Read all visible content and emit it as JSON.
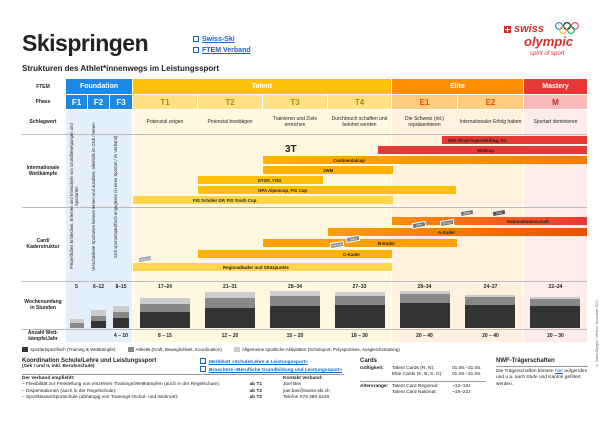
{
  "header": {
    "title": "Skispringen",
    "links": [
      "Swiss-Ski",
      "FTEM Verband"
    ],
    "subtitle": "Strukturen des Athlet*innenwegs im Leistungssport",
    "logo_line1": "swiss",
    "logo_line2": "olympic",
    "logo_tagline": "spirit of sport"
  },
  "row_labels": {
    "ftem": "FTEM",
    "phase": "Phase",
    "slogan": "Schlagwort",
    "international": "Internationale Wettkämpfe",
    "card": "Card/ Kaderstruktur",
    "weekly": "Wochenumfang in Stunden",
    "count": "Anzahl Wett-kämpfe/Jahr"
  },
  "groups": [
    {
      "name": "Foundation",
      "color": "#1e88e5"
    },
    {
      "name": "Talent",
      "color": "#ffc107"
    },
    {
      "name": "Elite",
      "color": "#ff8f00"
    },
    {
      "name": "Mastery",
      "color": "#e53935"
    }
  ],
  "phases": [
    {
      "id": "F1",
      "slogan": "",
      "hours": "5",
      "count": ""
    },
    {
      "id": "F2",
      "slogan": "",
      "hours": "6–12",
      "count": ""
    },
    {
      "id": "F3",
      "slogan": "",
      "hours": "8–15",
      "count": "4 – 10"
    },
    {
      "id": "T1",
      "slogan": "Potenzial zeigen",
      "hours": "17–24",
      "count": "8 – 15"
    },
    {
      "id": "T2",
      "slogan": "Potenzial bestätigen",
      "hours": "21–31",
      "count": "12 – 20"
    },
    {
      "id": "T3",
      "slogan": "Trainieren und Ziele erreichen",
      "hours": "28–34",
      "count": "15 – 20"
    },
    {
      "id": "T4",
      "slogan": "Durchbruch schaffen und belohnt werden",
      "hours": "27–33",
      "count": "18 – 30"
    },
    {
      "id": "E1",
      "slogan": "Die Schweiz (int.) repräsentieren",
      "hours": "28–34",
      "count": "20 – 40"
    },
    {
      "id": "E2",
      "slogan": "Internationaler Erfolg haben",
      "hours": "24–27",
      "count": "20 – 40"
    },
    {
      "id": "M",
      "slogan": "Sportart dominieren",
      "hours": "22–24",
      "count": "20 – 30"
    }
  ],
  "foundation_texts": [
    "Freizeitliches Entdecken, Erlernen und Entwickeln von Grundbewegungen und Sportarten",
    "Verschiedene Sportarten kennen lernen und ausüben; allenfalls im Club / Verein",
    "Sich sportartspezifisch engagieren (in einer Sportart / im Verband)"
  ],
  "international_bars": [
    {
      "label": "WM Skispringen/Skiflug, OS",
      "color": "#e53935"
    },
    {
      "label": "Weltcup",
      "color": "#e53935"
    },
    {
      "label": "Continentalcup",
      "color": "#f57c00"
    },
    {
      "label": "JWM",
      "color": "#ffb300"
    },
    {
      "label": "EYOF, YOG",
      "color": "#ffc107"
    },
    {
      "label": "OPA Alpencup, FIS Cup",
      "color": "#ffc107"
    },
    {
      "label": "FIS Schüler GP, FIS Youth Cup",
      "color": "#ffd54f"
    }
  ],
  "international_logo": "3T",
  "card_bars": [
    {
      "label": "Nationalmannschaft",
      "color": "#e53935"
    },
    {
      "label": "A-Kader",
      "color": "#ff8f00"
    },
    {
      "label": "B-Kader",
      "color": "#ffa000"
    },
    {
      "label": "C-Kader",
      "color": "#ffb300"
    },
    {
      "label": "Regionalkader und Stützpunkte",
      "color": "#ffd54f"
    }
  ],
  "mini_cards": [
    "Gold",
    "Silver",
    "Bronze",
    "Elite",
    "Talent",
    "National",
    "Regional"
  ],
  "legend": [
    {
      "label": "Sportartspezifisch (Training & Wettkämpfe)",
      "color": "#333"
    },
    {
      "label": "Athletik (Kraft, Beweglichkeit, Koordination)",
      "color": "#888"
    },
    {
      "label": "Allgemeine sportliche Aktivitäten (Schulsport, Polysportives, Ausgleichstraining)",
      "color": "#ccc"
    }
  ],
  "bottom": {
    "coord_title": "Koordination Schule/Lehre und Leistungssport",
    "coord_sub": "(Sek I und II, inkl. Berufsschule)",
    "coord_links": [
      "Merkblatt «Schule/Lehre & Leistungssport»",
      "Broschüre «Beruﬂiche Grundbildung und Leistungssport»"
    ],
    "rec_title": "Der Verband empfiehlt:",
    "recs": [
      {
        "text": "– Flexibilität zur Freistellung von einzelnen Trainings/Wettkämpfen (auch in der Regelschule):",
        "val": "ab T1"
      },
      {
        "text": "– Dispensationen (auch in der Regelschule):",
        "val": "ab T2"
      },
      {
        "text": "– Sportklasse/Sportschule (abhängig von Trainings-/Schul- und Wohnort):",
        "val": "ab T2"
      }
    ],
    "contact_title": "Kontakt Verband:",
    "contact": [
      "Joel Biei",
      "joel.biei@swiss-ski.ch",
      "Telefon 079 380 6249"
    ],
    "cards_title": "Cards",
    "validity_label": "Gültigkeit:",
    "validity": [
      "Talent Cards (R, N):",
      "01.06.–31.05.",
      "Elite Cards (E, B, S, G):",
      "01.06.–31.05."
    ],
    "age_label": "Altersrange:",
    "age": [
      "Talent Card Regional:",
      "~12–18J",
      "Talent Card National:",
      "~16–22J"
    ],
    "nwf_title": "NWF-Trägerschaften",
    "nwf_text_pre": "Die Trägerschaften können",
    "nwf_link": "hier",
    "nwf_text_post": "aufgerufen und u.a. nach Stufe und Kanton gefiltert werden."
  },
  "side_note": "© Swiss Olympic / Version: November 2021"
}
